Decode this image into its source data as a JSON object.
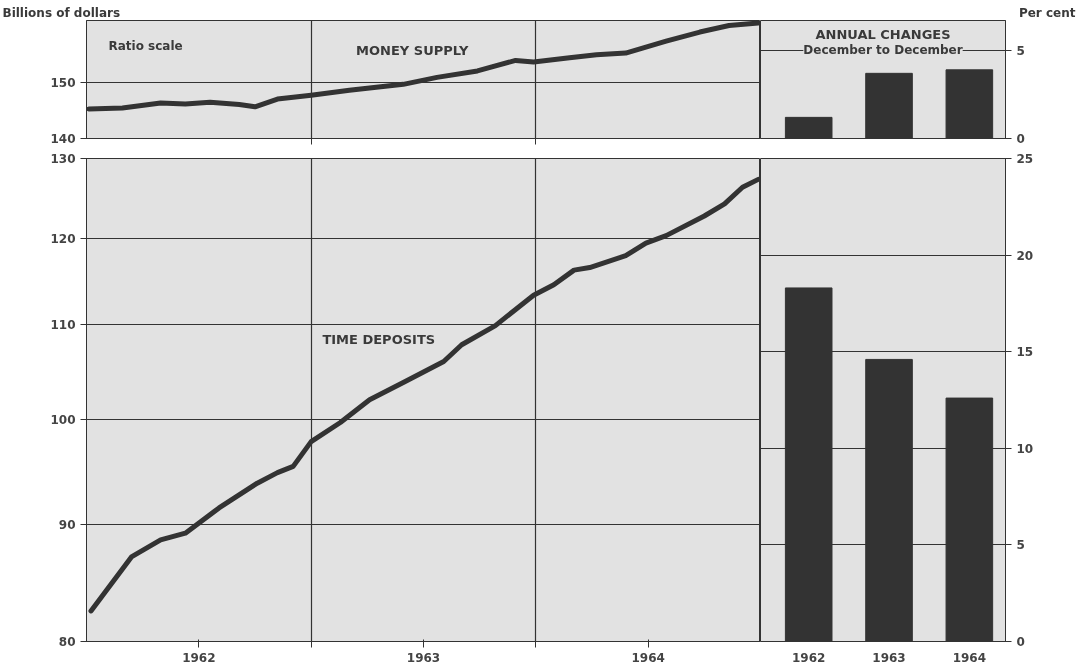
{
  "chart_data": [
    {
      "type": "line",
      "title": "MONEY SUPPLY",
      "ylabel": "Billions of dollars",
      "annotations": [
        "Ratio scale"
      ],
      "log": "y",
      "grid": "xy",
      "tick_labels": "y",
      "line_style": "solid",
      "marker": "none",
      "xlim": [
        1962,
        1965
      ],
      "xticks": [
        {
          "value": 1963,
          "label": null
        },
        {
          "value": 1964,
          "label": null
        }
      ],
      "ylim": [
        140,
        162
      ],
      "yticks": [
        140,
        150
      ],
      "series": [
        {
          "color": "#333333",
          "x": [
            1962.01,
            1962.16,
            1962.33,
            1962.44,
            1962.55,
            1962.68,
            1962.75,
            1962.85,
            1963.0,
            1963.17,
            1963.41,
            1963.56,
            1963.74,
            1963.91,
            1963.99,
            1964.15,
            1964.27,
            1964.4,
            1964.58,
            1964.73,
            1964.86,
            1964.99
          ],
          "values": [
            145.2,
            145.4,
            146.3,
            146.1,
            146.4,
            146.0,
            145.6,
            147.0,
            147.7,
            148.6,
            149.7,
            151.0,
            152.2,
            154.2,
            153.9,
            154.7,
            155.3,
            155.6,
            157.9,
            159.7,
            161.0,
            161.5
          ]
        }
      ]
    },
    {
      "type": "bar",
      "title": "ANNUAL CHANGES",
      "subtitle": "December to December",
      "ylabel": "Per cent",
      "grid": "y",
      "tick_labels": "y",
      "categories": [
        null,
        null,
        null
      ],
      "ylim": [
        0,
        6.7
      ],
      "yticks": [
        0,
        5
      ],
      "series": [
        {
          "color": "#333333",
          "values": [
            1.2,
            3.7,
            3.9
          ]
        }
      ]
    },
    {
      "type": "line",
      "title": "TIME DEPOSITS",
      "log": "y",
      "grid": "xy",
      "line_style": "solid",
      "marker": "none",
      "xlim": [
        1962,
        1965
      ],
      "xticks": [
        {
          "value": 1962.5,
          "label": "1962"
        },
        {
          "value": 1963,
          "label": null
        },
        {
          "value": 1963.5,
          "label": "1963"
        },
        {
          "value": 1964,
          "label": null
        },
        {
          "value": 1964.5,
          "label": "1964"
        }
      ],
      "ylim": [
        80,
        130
      ],
      "yticks": [
        80,
        90,
        100,
        110,
        120,
        130
      ],
      "series": [
        {
          "color": "#333333",
          "x": [
            1962.02,
            1962.2,
            1962.33,
            1962.44,
            1962.59,
            1962.76,
            1962.85,
            1962.92,
            1963.0,
            1963.13,
            1963.26,
            1963.41,
            1963.59,
            1963.67,
            1963.82,
            1963.91,
            1963.99,
            1964.08,
            1964.17,
            1964.24,
            1964.4,
            1964.49,
            1964.58,
            1964.75,
            1964.84,
            1964.92,
            1964.99
          ],
          "values": [
            82.5,
            87.1,
            88.6,
            89.2,
            91.5,
            93.8,
            94.8,
            95.4,
            97.8,
            99.7,
            102.0,
            103.8,
            106.0,
            107.8,
            109.9,
            111.7,
            113.3,
            114.5,
            116.2,
            116.5,
            117.9,
            119.4,
            120.3,
            122.7,
            124.2,
            126.3,
            127.3
          ]
        }
      ]
    },
    {
      "type": "bar",
      "grid": "y",
      "categories": [
        "1962",
        "1963",
        "1964"
      ],
      "ylim": [
        0,
        25
      ],
      "yticks": [
        0,
        5,
        10,
        15,
        20,
        25
      ],
      "series": [
        {
          "color": "#333333",
          "values": [
            18.3,
            14.6,
            12.6
          ]
        }
      ]
    }
  ]
}
